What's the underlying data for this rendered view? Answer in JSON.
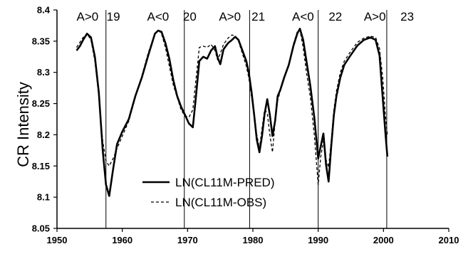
{
  "chart_data": {
    "type": "line",
    "title": "",
    "xlabel": "",
    "ylabel": "CR Intensity",
    "xlim": [
      1950,
      2010
    ],
    "ylim": [
      8.05,
      8.4
    ],
    "x_ticks": [
      "1950",
      "1960",
      "1970",
      "1980",
      "1990",
      "2000",
      "2010"
    ],
    "y_ticks": [
      "8.05",
      "8.1",
      "8.15",
      "8.2",
      "8.25",
      "8.3",
      "8.35",
      "8.4"
    ],
    "grid": false,
    "legend_position": "bottom-left",
    "cycle_dividers_x": [
      1957.5,
      1969.5,
      1979.5,
      1990.0,
      2000.5
    ],
    "annotations": [
      {
        "text": "A>0",
        "x": 1953.0
      },
      {
        "text": "19",
        "x": 1957.6
      },
      {
        "text": "A<0",
        "x": 1963.8
      },
      {
        "text": "20",
        "x": 1969.3
      },
      {
        "text": "A>0",
        "x": 1974.8
      },
      {
        "text": "21",
        "x": 1979.8
      },
      {
        "text": "A<0",
        "x": 1986.0
      },
      {
        "text": "22",
        "x": 1991.6
      },
      {
        "text": "A>0",
        "x": 1997.0
      },
      {
        "text": "23",
        "x": 2002.6
      }
    ],
    "series": [
      {
        "name": "LN(CL11M-PRED)",
        "style": "solid",
        "color": "#000000",
        "x": [
          1953.0,
          1953.5,
          1954.0,
          1954.6,
          1955.2,
          1955.8,
          1956.4,
          1957.0,
          1957.5,
          1958.0,
          1958.6,
          1959.2,
          1960.0,
          1961.0,
          1962.0,
          1963.0,
          1964.0,
          1965.0,
          1965.5,
          1966.0,
          1966.6,
          1967.2,
          1967.8,
          1968.4,
          1969.0,
          1969.6,
          1970.2,
          1970.8,
          1971.2,
          1971.8,
          1972.4,
          1973.0,
          1973.6,
          1974.2,
          1974.6,
          1975.0,
          1975.5,
          1976.2,
          1976.8,
          1977.3,
          1977.8,
          1978.4,
          1979.0,
          1979.4,
          1979.8,
          1980.2,
          1980.6,
          1981.0,
          1981.4,
          1981.8,
          1982.2,
          1982.6,
          1983.0,
          1983.4,
          1983.8,
          1984.2,
          1984.8,
          1985.5,
          1986.2,
          1986.8,
          1987.2,
          1987.7,
          1988.2,
          1988.8,
          1989.4,
          1990.0,
          1990.4,
          1990.8,
          1991.2,
          1991.6,
          1992.0,
          1992.4,
          1992.8,
          1993.4,
          1994.0,
          1995.0,
          1996.0,
          1997.0,
          1998.0,
          1998.8,
          1999.4,
          1999.9,
          2000.3,
          2000.6
        ],
        "values": [
          8.335,
          8.342,
          8.352,
          8.362,
          8.356,
          8.325,
          8.268,
          8.175,
          8.12,
          8.102,
          8.145,
          8.185,
          8.205,
          8.225,
          8.262,
          8.292,
          8.328,
          8.362,
          8.367,
          8.365,
          8.347,
          8.322,
          8.288,
          8.262,
          8.245,
          8.232,
          8.218,
          8.212,
          8.252,
          8.318,
          8.325,
          8.322,
          8.335,
          8.342,
          8.324,
          8.313,
          8.337,
          8.347,
          8.352,
          8.357,
          8.352,
          8.335,
          8.318,
          8.298,
          8.268,
          8.232,
          8.192,
          8.172,
          8.198,
          8.234,
          8.257,
          8.232,
          8.198,
          8.222,
          8.262,
          8.272,
          8.292,
          8.312,
          8.342,
          8.362,
          8.37,
          8.352,
          8.318,
          8.278,
          8.228,
          8.162,
          8.182,
          8.202,
          8.152,
          8.125,
          8.182,
          8.232,
          8.262,
          8.292,
          8.312,
          8.328,
          8.343,
          8.352,
          8.356,
          8.352,
          8.327,
          8.257,
          8.202,
          8.165
        ]
      },
      {
        "name": "LN(CL11M-OBS)",
        "style": "dashed",
        "color": "#000000",
        "x": [
          1953.0,
          1953.5,
          1954.0,
          1954.6,
          1955.2,
          1955.8,
          1956.4,
          1957.0,
          1957.5,
          1958.0,
          1958.6,
          1959.2,
          1960.0,
          1961.0,
          1962.0,
          1963.0,
          1964.0,
          1965.0,
          1965.5,
          1966.0,
          1966.6,
          1967.2,
          1967.8,
          1968.4,
          1969.0,
          1969.6,
          1970.2,
          1970.8,
          1971.2,
          1971.8,
          1972.4,
          1973.0,
          1973.6,
          1974.2,
          1974.6,
          1975.0,
          1975.5,
          1976.2,
          1976.8,
          1977.3,
          1977.8,
          1978.4,
          1979.0,
          1979.4,
          1979.8,
          1980.2,
          1980.6,
          1981.0,
          1981.4,
          1981.8,
          1982.2,
          1982.6,
          1983.0,
          1983.4,
          1983.8,
          1984.2,
          1984.8,
          1985.5,
          1986.2,
          1986.8,
          1987.2,
          1987.7,
          1988.2,
          1988.8,
          1989.4,
          1990.0,
          1990.4,
          1990.8,
          1991.2,
          1991.6,
          1992.0,
          1992.4,
          1992.8,
          1993.4,
          1994.0,
          1995.0,
          1996.0,
          1997.0,
          1998.0,
          1998.8,
          1999.4,
          1999.9,
          2000.3,
          2000.6
        ],
        "values": [
          8.34,
          8.348,
          8.356,
          8.362,
          8.352,
          8.318,
          8.262,
          8.19,
          8.158,
          8.15,
          8.162,
          8.178,
          8.198,
          8.222,
          8.26,
          8.295,
          8.332,
          8.362,
          8.368,
          8.362,
          8.34,
          8.31,
          8.28,
          8.26,
          8.24,
          8.23,
          8.228,
          8.24,
          8.28,
          8.34,
          8.342,
          8.34,
          8.345,
          8.335,
          8.32,
          8.33,
          8.345,
          8.355,
          8.36,
          8.358,
          8.35,
          8.33,
          8.31,
          8.29,
          8.26,
          8.23,
          8.2,
          8.178,
          8.21,
          8.24,
          8.235,
          8.2,
          8.172,
          8.22,
          8.255,
          8.27,
          8.29,
          8.31,
          8.345,
          8.365,
          8.368,
          8.34,
          8.3,
          8.26,
          8.2,
          8.12,
          8.165,
          8.19,
          8.16,
          8.148,
          8.19,
          8.24,
          8.27,
          8.3,
          8.318,
          8.334,
          8.348,
          8.355,
          8.358,
          8.356,
          8.338,
          8.29,
          8.23,
          8.2
        ]
      }
    ]
  }
}
